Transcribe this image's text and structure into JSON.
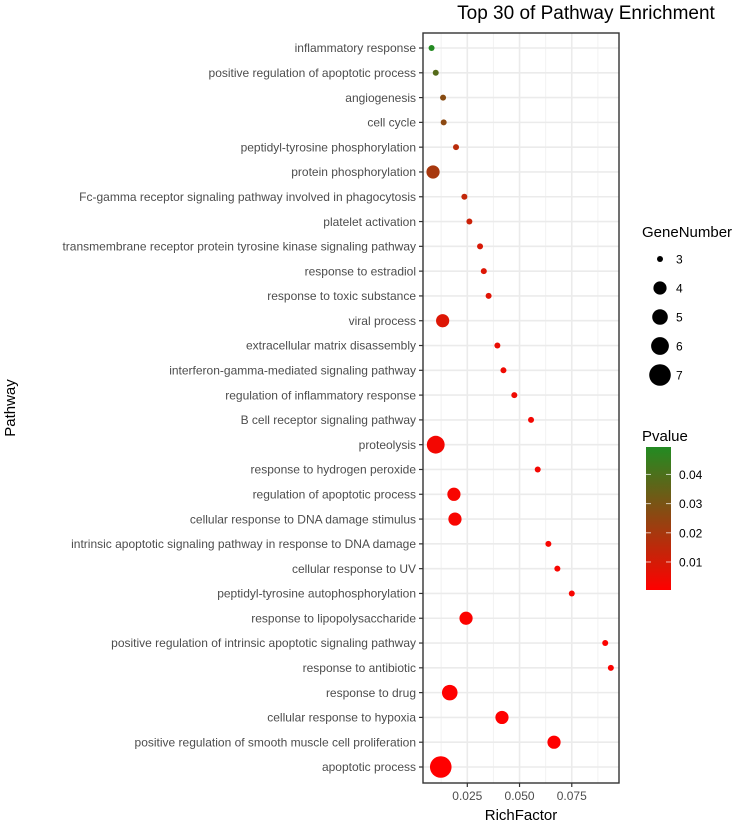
{
  "chart_data": {
    "type": "scatter",
    "title": "Top 30 of Pathway Enrichment",
    "xlabel": "RichFactor",
    "ylabel": "Pathway",
    "xlim": [
      0.0038,
      0.0976
    ],
    "xticks": [
      0.025,
      0.05,
      0.075
    ],
    "xtick_labels": [
      "0.025",
      "0.050",
      "0.075"
    ],
    "grid": true,
    "size_legend": {
      "title": "GeneNumber",
      "values": [
        3,
        4,
        5,
        6,
        7
      ],
      "labels": [
        "3",
        "4",
        "5",
        "6",
        "7"
      ],
      "placement": "right"
    },
    "color_legend": {
      "title": "Pvalue",
      "range": [
        0.0004,
        0.0494
      ],
      "ticks": [
        0.04,
        0.03,
        0.02,
        0.01
      ],
      "tick_labels": [
        "0.04",
        "0.03",
        "0.02",
        "0.01"
      ],
      "low_color": "#FF0000",
      "high_color": "#228B22",
      "placement": "right"
    },
    "points": [
      {
        "pathway": "inflammatory response",
        "rich_factor": 0.0079,
        "gene_number": 3,
        "pvalue": 0.049
      },
      {
        "pathway": "positive regulation of apoptotic process",
        "rich_factor": 0.0099,
        "gene_number": 3,
        "pvalue": 0.038
      },
      {
        "pathway": "angiogenesis",
        "rich_factor": 0.0134,
        "gene_number": 3,
        "pvalue": 0.027
      },
      {
        "pathway": "cell cycle",
        "rich_factor": 0.0137,
        "gene_number": 3,
        "pvalue": 0.026
      },
      {
        "pathway": "peptidyl-tyrosine phosphorylation",
        "rich_factor": 0.0196,
        "gene_number": 3,
        "pvalue": 0.016
      },
      {
        "pathway": "protein phosphorylation",
        "rich_factor": 0.0086,
        "gene_number": 4,
        "pvalue": 0.02
      },
      {
        "pathway": "Fc-gamma receptor signaling pathway involved in phagocytosis",
        "rich_factor": 0.0236,
        "gene_number": 3,
        "pvalue": 0.014
      },
      {
        "pathway": "platelet activation",
        "rich_factor": 0.026,
        "gene_number": 3,
        "pvalue": 0.012
      },
      {
        "pathway": "transmembrane receptor protein tyrosine kinase signaling pathway",
        "rich_factor": 0.0311,
        "gene_number": 3,
        "pvalue": 0.009
      },
      {
        "pathway": "response to estradiol",
        "rich_factor": 0.0329,
        "gene_number": 3,
        "pvalue": 0.008
      },
      {
        "pathway": "response to toxic substance",
        "rich_factor": 0.0352,
        "gene_number": 3,
        "pvalue": 0.007
      },
      {
        "pathway": "viral process",
        "rich_factor": 0.0132,
        "gene_number": 4,
        "pvalue": 0.008
      },
      {
        "pathway": "extracellular matrix disassembly",
        "rich_factor": 0.0394,
        "gene_number": 3,
        "pvalue": 0.005
      },
      {
        "pathway": "interferon-gamma-mediated signaling pathway",
        "rich_factor": 0.0423,
        "gene_number": 3,
        "pvalue": 0.004
      },
      {
        "pathway": "regulation of inflammatory response",
        "rich_factor": 0.0475,
        "gene_number": 3,
        "pvalue": 0.004
      },
      {
        "pathway": "B cell receptor signaling pathway",
        "rich_factor": 0.0555,
        "gene_number": 3,
        "pvalue": 0.003
      },
      {
        "pathway": "proteolysis",
        "rich_factor": 0.0099,
        "gene_number": 6,
        "pvalue": 0.003
      },
      {
        "pathway": "response to hydrogen peroxide",
        "rich_factor": 0.0587,
        "gene_number": 3,
        "pvalue": 0.003
      },
      {
        "pathway": "regulation of apoptotic process",
        "rich_factor": 0.0186,
        "gene_number": 4,
        "pvalue": 0.002
      },
      {
        "pathway": "cellular response to DNA damage stimulus",
        "rich_factor": 0.0191,
        "gene_number": 4,
        "pvalue": 0.002
      },
      {
        "pathway": "intrinsic apoptotic signaling pathway in response to DNA damage",
        "rich_factor": 0.0638,
        "gene_number": 3,
        "pvalue": 0.002
      },
      {
        "pathway": "cellular response to UV",
        "rich_factor": 0.0681,
        "gene_number": 3,
        "pvalue": 0.002
      },
      {
        "pathway": "peptidyl-tyrosine autophosphorylation",
        "rich_factor": 0.075,
        "gene_number": 3,
        "pvalue": 0.002
      },
      {
        "pathway": "response to lipopolysaccharide",
        "rich_factor": 0.0244,
        "gene_number": 4,
        "pvalue": 0.001
      },
      {
        "pathway": "positive regulation of intrinsic apoptotic signaling pathway",
        "rich_factor": 0.091,
        "gene_number": 3,
        "pvalue": 0.001
      },
      {
        "pathway": "response to antibiotic",
        "rich_factor": 0.0937,
        "gene_number": 3,
        "pvalue": 0.001
      },
      {
        "pathway": "response to drug",
        "rich_factor": 0.0166,
        "gene_number": 5,
        "pvalue": 0.0005
      },
      {
        "pathway": "cellular response to hypoxia",
        "rich_factor": 0.0416,
        "gene_number": 4,
        "pvalue": 0.0005
      },
      {
        "pathway": "positive regulation of smooth muscle cell proliferation",
        "rich_factor": 0.0665,
        "gene_number": 4,
        "pvalue": 0.0005
      },
      {
        "pathway": "apoptotic process",
        "rich_factor": 0.0123,
        "gene_number": 7,
        "pvalue": 0.0004
      }
    ]
  }
}
